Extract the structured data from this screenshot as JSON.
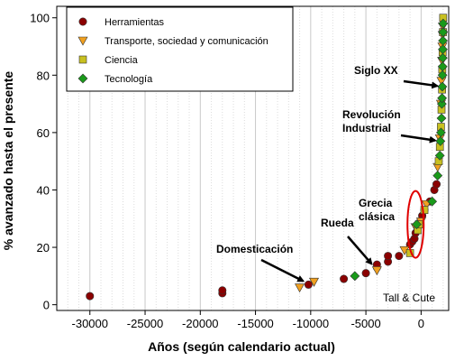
{
  "chart_data": {
    "type": "scatter",
    "title": "",
    "xlabel": "Años (según calendario actual)",
    "ylabel": "% avanzado hasta el presente",
    "xlim": [
      -33000,
      2500
    ],
    "ylim": [
      -2,
      104
    ],
    "xticks": [
      -30000,
      -25000,
      -20000,
      -15000,
      -10000,
      -5000,
      0
    ],
    "yticks": [
      0,
      20,
      40,
      60,
      80,
      100
    ],
    "grid": "vertical-dotted",
    "legend_position": "top-left",
    "watermark": "Tall & Cute",
    "colors": {
      "herramientas": "#8b0000",
      "transporte": "#f0a020",
      "ciencia": "#c8c020",
      "tecnologia": "#1a9a1a",
      "highlight": "#e00000"
    },
    "series": [
      {
        "name": "Herramientas",
        "marker": "circle",
        "color": "#8b0000",
        "points": [
          [
            -30000,
            3
          ],
          [
            -18000,
            4
          ],
          [
            -18000,
            5
          ],
          [
            -10200,
            7
          ],
          [
            -7000,
            9
          ],
          [
            -5000,
            11
          ],
          [
            -4000,
            13
          ],
          [
            -4000,
            14
          ],
          [
            -3000,
            15
          ],
          [
            -3000,
            17
          ],
          [
            -2000,
            17
          ],
          [
            -1000,
            21
          ],
          [
            -800,
            22
          ],
          [
            -600,
            23
          ],
          [
            -500,
            25
          ],
          [
            100,
            31
          ],
          [
            300,
            33
          ],
          [
            800,
            36
          ],
          [
            1200,
            40
          ],
          [
            1400,
            42
          ]
        ]
      },
      {
        "name": "Transporte, sociedad y comunicación",
        "marker": "triangle-down",
        "color": "#f0a020",
        "points": [
          [
            -11000,
            6
          ],
          [
            -9700,
            8
          ],
          [
            -4000,
            12
          ],
          [
            -1500,
            19
          ],
          [
            -500,
            27
          ],
          [
            0,
            29
          ],
          [
            500,
            35
          ],
          [
            1500,
            48
          ],
          [
            1700,
            58
          ],
          [
            1800,
            70
          ],
          [
            1850,
            78
          ],
          [
            1900,
            85
          ],
          [
            1930,
            90
          ],
          [
            1950,
            94
          ],
          [
            1970,
            97
          ]
        ]
      },
      {
        "name": "Ciencia",
        "marker": "square",
        "color": "#c8c020",
        "points": [
          [
            -1000,
            18
          ],
          [
            -300,
            26
          ],
          [
            -200,
            28
          ],
          [
            300,
            33
          ],
          [
            1600,
            50
          ],
          [
            1700,
            55
          ],
          [
            1800,
            62
          ],
          [
            1850,
            68
          ],
          [
            1900,
            75
          ],
          [
            1920,
            82
          ],
          [
            1950,
            88
          ],
          [
            1980,
            95
          ],
          [
            2000,
            100
          ]
        ]
      },
      {
        "name": "Tecnología",
        "marker": "diamond",
        "color": "#1a9a1a",
        "points": [
          [
            -6000,
            10
          ],
          [
            -400,
            28
          ],
          [
            1000,
            36
          ],
          [
            1500,
            45
          ],
          [
            1700,
            52
          ],
          [
            1750,
            57
          ],
          [
            1800,
            60
          ],
          [
            1850,
            65
          ],
          [
            1880,
            70
          ],
          [
            1900,
            72
          ],
          [
            1920,
            76
          ],
          [
            1940,
            80
          ],
          [
            1950,
            83
          ],
          [
            1960,
            86
          ],
          [
            1970,
            89
          ],
          [
            1980,
            92
          ],
          [
            1990,
            95
          ],
          [
            2000,
            98
          ]
        ]
      }
    ],
    "annotations": [
      {
        "lines": [
          "Siglo XX"
        ],
        "points_to": [
          1950,
          75
        ]
      },
      {
        "lines": [
          "Revolución",
          "Industrial"
        ],
        "points_to": [
          1750,
          56
        ]
      },
      {
        "lines": [
          "Grecia",
          "clásica"
        ],
        "points_to": [
          -300,
          27
        ]
      },
      {
        "lines": [
          "Rueda"
        ],
        "points_to": [
          -4000,
          13
        ]
      },
      {
        "lines": [
          "Domesticación"
        ],
        "points_to": [
          -10200,
          7
        ]
      }
    ],
    "highlight": {
      "shape": "ellipse",
      "around": [
        -500,
        28
      ]
    }
  }
}
